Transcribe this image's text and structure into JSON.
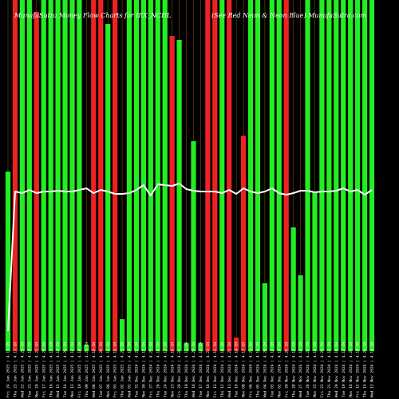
{
  "chart_data": {
    "type": "bar",
    "title": "MunafaSutra Money Flow Charts for IEX_NCHL",
    "subtitle": "(See Red Neon & Neon Blue) MunafaSutra.com",
    "categories": [
      "Fri 24 Jan 2025 | 4.17 CH",
      "Thu 23 Jan 2025 | 4.17 CH",
      "Wed 22 Jan 2025 | 4.21 CH",
      "Tue 21 Jan 2025 | 4.18 CH",
      "Mon 20 Jan 2025 | 4.22 CH",
      "Fri 17 Jan 2025 | 4.24 CH",
      "Thu 16 Jan 2025 | 4.15 CH",
      "Wed 15 Jan 2025 | 4.13 CH",
      "Tue 14 Jan 2025 | 4.20 CH",
      "Mon 13 Jan 2025 | 4.12 CH",
      "Fri 10 Jan 2025 | 4.19 CH",
      "Thu 09 Jan 2025 | 4.23 CH",
      "Wed 08 Jan 2025 | 4.16 CH",
      "Tue 07 Jan 2025 | 4.20 CH",
      "Mon 06 Jan 2025 | 4.11 CH",
      "Fri 03 Jan 2025 | 4.18 CH",
      "Thu 02 Jan 2025 | 4.21 CH",
      "Wed 01 Jan 2025 | 4.14 CH",
      "Tue 31 Dec 2024 | 4.22 CH",
      "Mon 30 Dec 2024 | 4.17 CH",
      "Fri 27 Dec 2024 | 4.25 CH",
      "Thu 26 Dec 2024 | 4.19 CH",
      "Tue 24 Dec 2024 | 4.12 CH",
      "Mon 23 Dec 2024 | 4.16 CH",
      "Fri 20 Dec 2024 | 4.21 CH",
      "Thu 19 Dec 2024 | 4.13 CH",
      "Wed 18 Dec 2024 | 4.20 CH",
      "Tue 17 Dec 2024 | 4.18 CH",
      "Mon 16 Dec 2024 | 4.23 CH",
      "Fri 13 Dec 2024 | 4.15 CH",
      "Thu 12 Dec 2024 | 4.19 CH",
      "Wed 11 Dec 2024 | 4.22 CH",
      "Tue 10 Dec 2024 | 4.14 CH",
      "Mon 09 Dec 2024 | 4.17 CH",
      "Fri 06 Dec 2024 | 4.21 CH",
      "Thu 05 Dec 2024 | 4.16 CH",
      "Wed 04 Dec 2024 | 4.24 CH",
      "Tue 03 Dec 2024 | 4.12 CH",
      "Mon 02 Dec 2024 | 4.19 CH",
      "Fri 29 Nov 2024 | 4.20 CH",
      "Thu 28 Nov 2024 | 4.15 CH",
      "Wed 27 Nov 2024 | 4.18 CH",
      "Tue 26 Nov 2024 | 4.22 CH",
      "Mon 25 Nov 2024 | 4.16 CH",
      "Fri 22 Nov 2024 | 4.21 CH",
      "Thu 21 Nov 2024 | 4.13 CH",
      "Wed 20 Nov 2024 | 4.19 CH",
      "Tue 19 Nov 2024 | 4.17 CH",
      "Mon 18 Nov 2024 | 4.23 CH",
      "Fri 15 Nov 2024 | 4.18 CH",
      "Thu 14 Nov 2024 | 4.20 CH",
      "Wed 13 Nov 2024 | 4.16 CH"
    ],
    "volumes": [
      225,
      440,
      440,
      440,
      425,
      440,
      440,
      440,
      440,
      440,
      440,
      8,
      440,
      440,
      410,
      440,
      40,
      440,
      440,
      440,
      440,
      440,
      440,
      395,
      390,
      10,
      263,
      10,
      440,
      440,
      440,
      440,
      17,
      270,
      440,
      440,
      85,
      440,
      440,
      440,
      155,
      95,
      440,
      200,
      440,
      440,
      440,
      440,
      440,
      440,
      440,
      440
    ],
    "flow": [
      "up",
      "down",
      "up",
      "up",
      "down",
      "up",
      "up",
      "up",
      "up",
      "up",
      "up",
      "up",
      "down",
      "down",
      "up",
      "down",
      "up",
      "up",
      "up",
      "up",
      "up",
      "up",
      "up",
      "down",
      "up",
      "up",
      "up",
      "up",
      "down",
      "down",
      "up",
      "down",
      "down",
      "down",
      "up",
      "up",
      "up",
      "up",
      "up",
      "down",
      "up",
      "up",
      "up",
      "up",
      "up",
      "up",
      "up",
      "up",
      "up",
      "up",
      "up",
      "up"
    ],
    "price_line": [
      415,
      240,
      242,
      238,
      242,
      240,
      240,
      239,
      240,
      240,
      238,
      236,
      242,
      238,
      240,
      243,
      243,
      242,
      238,
      232,
      245,
      231,
      232,
      233,
      230,
      237,
      239,
      240,
      240,
      240,
      242,
      238,
      243,
      236,
      240,
      242,
      240,
      236,
      242,
      244,
      242,
      239,
      239,
      241,
      240,
      240,
      239,
      236,
      240,
      238,
      244,
      238
    ],
    "ylim": [
      0,
      440
    ],
    "grid": true,
    "legend": "none",
    "colors": {
      "up": "#22ee22",
      "down": "#ee2222",
      "line": "#ffffff",
      "grid": "#7a4a1a",
      "background": "#000000"
    }
  }
}
